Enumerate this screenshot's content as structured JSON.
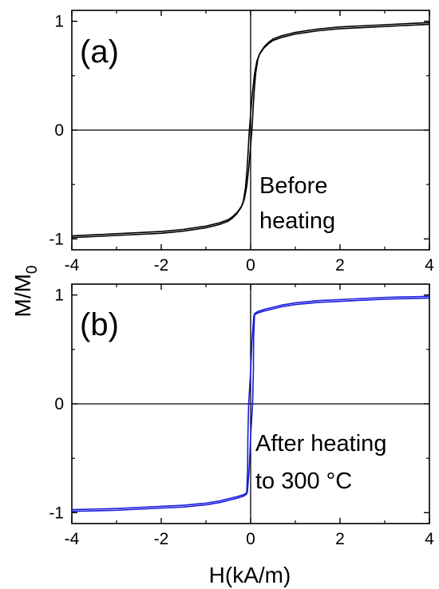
{
  "chart_data": [
    {
      "type": "line",
      "panel_label": "(a)",
      "annotation": [
        "Before",
        "heating"
      ],
      "xlim": [
        -4,
        4
      ],
      "ylim": [
        -1.1,
        1.1
      ],
      "x_ticks": [
        -4,
        -2,
        0,
        2,
        4
      ],
      "x_tick_labels": [
        "-4",
        "-2",
        "0",
        "2",
        "4"
      ],
      "y_ticks": [
        -1,
        0,
        1
      ],
      "y_tick_labels": [
        "-1",
        "0",
        "1"
      ],
      "series": [
        {
          "color": "#000000",
          "x": [
            -4,
            -3,
            -2,
            -1.5,
            -1,
            -0.7,
            -0.5,
            -0.4,
            -0.3,
            -0.2,
            -0.15,
            -0.1,
            -0.06,
            -0.03,
            0,
            0.03,
            0.06,
            0.1,
            0.15,
            0.2,
            0.3,
            0.4,
            0.5,
            0.7,
            1,
            1.5,
            2,
            3,
            4
          ],
          "y": [
            -0.98,
            -0.96,
            -0.94,
            -0.92,
            -0.89,
            -0.86,
            -0.83,
            -0.8,
            -0.76,
            -0.7,
            -0.64,
            -0.52,
            -0.35,
            -0.18,
            0,
            0.18,
            0.35,
            0.52,
            0.64,
            0.7,
            0.76,
            0.8,
            0.83,
            0.86,
            0.89,
            0.92,
            0.94,
            0.96,
            0.98
          ]
        }
      ]
    },
    {
      "type": "line",
      "panel_label": "(b)",
      "annotation": [
        "After heating",
        "to 300 °C"
      ],
      "xlim": [
        -4,
        4
      ],
      "ylim": [
        -1.1,
        1.1
      ],
      "x_ticks": [
        -4,
        -2,
        0,
        2,
        4
      ],
      "x_tick_labels": [
        "-4",
        "-2",
        "0",
        "2",
        "4"
      ],
      "y_ticks": [
        -1,
        0,
        1
      ],
      "y_tick_labels": [
        "-1",
        "0",
        "1"
      ],
      "xlabel": "H(kA/m)",
      "series": [
        {
          "color": "#1a1adc",
          "x": [
            -4,
            -3,
            -2,
            -1.5,
            -1,
            -0.7,
            -0.5,
            -0.3,
            -0.15,
            -0.08,
            -0.05,
            -0.03,
            0,
            0.03,
            0.05,
            0.08,
            0.15,
            0.3,
            0.5,
            0.7,
            1,
            1.5,
            2,
            3,
            4
          ],
          "y": [
            -0.98,
            -0.97,
            -0.95,
            -0.94,
            -0.92,
            -0.9,
            -0.88,
            -0.86,
            -0.84,
            -0.82,
            -0.6,
            -0.3,
            0,
            0.3,
            0.6,
            0.82,
            0.84,
            0.86,
            0.88,
            0.9,
            0.92,
            0.94,
            0.95,
            0.97,
            0.98
          ]
        }
      ]
    }
  ],
  "ylabel_main": "M/M",
  "ylabel_sub": "0"
}
